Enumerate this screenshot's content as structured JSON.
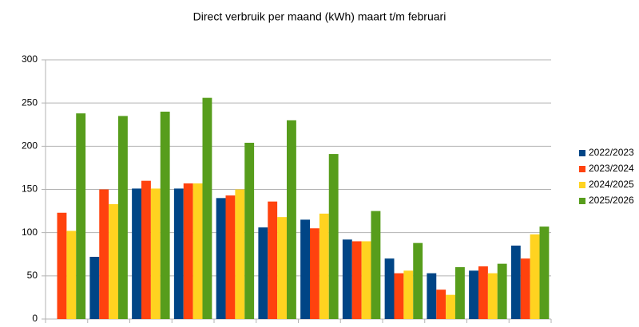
{
  "chart_data": {
    "type": "bar",
    "title": "Direct verbruik per maand (kWh) maart t/m februari",
    "categories": [
      null,
      null,
      null,
      null,
      null,
      null,
      null,
      null,
      null,
      null,
      null,
      null
    ],
    "series": [
      {
        "name": "2022/2023",
        "color": "#004586",
        "values": [
          null,
          72,
          151,
          151,
          140,
          106,
          115,
          92,
          70,
          53,
          56,
          85
        ]
      },
      {
        "name": "2023/2024",
        "color": "#ff420e",
        "values": [
          123,
          150,
          160,
          157,
          143,
          136,
          105,
          90,
          53,
          34,
          61,
          70
        ]
      },
      {
        "name": "2024/2025",
        "color": "#ffd320",
        "values": [
          102,
          133,
          151,
          157,
          150,
          118,
          122,
          90,
          56,
          28,
          53,
          98
        ]
      },
      {
        "name": "2025/2026",
        "color": "#579d1c",
        "values": [
          238,
          235,
          240,
          256,
          204,
          230,
          191,
          125,
          88,
          60,
          64,
          107
        ]
      }
    ],
    "ylim": [
      0,
      300
    ],
    "yticks": [
      0,
      50,
      100,
      150,
      200,
      250,
      300
    ],
    "grid": true,
    "legend": "right"
  }
}
